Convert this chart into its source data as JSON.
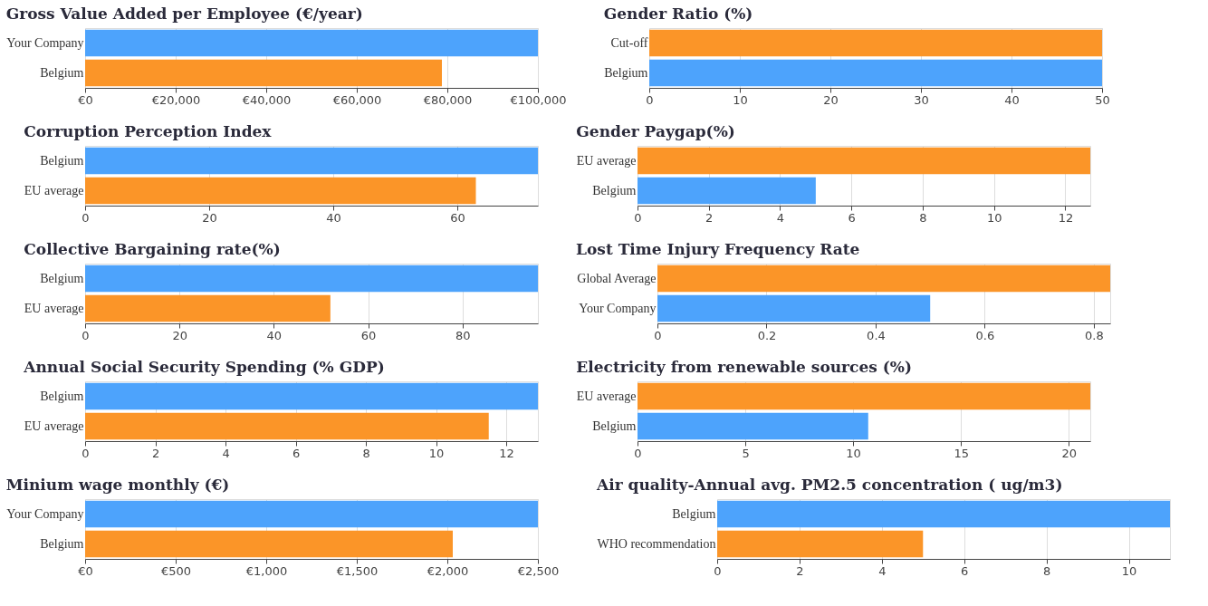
{
  "chart_data": [
    {
      "type": "bar",
      "orientation": "horizontal",
      "title": "Gross Value Added per Employee (€/year)",
      "categories": [
        "Your Company",
        "Belgium"
      ],
      "values": [
        100000,
        78800
      ],
      "colors": [
        "#4da3fc",
        "#fb9528"
      ],
      "xlim": [
        0,
        100000
      ],
      "xticks": [
        {
          "value": 0,
          "label": "€0"
        },
        {
          "value": 20000,
          "label": "€20,000"
        },
        {
          "value": 40000,
          "label": "€40,000"
        },
        {
          "value": 60000,
          "label": "€60,000"
        },
        {
          "value": 80000,
          "label": "€80,000"
        },
        {
          "value": 100000,
          "label": "€100,000"
        }
      ],
      "grid": "x"
    },
    {
      "type": "bar",
      "orientation": "horizontal",
      "title": "Gender Ratio (%)",
      "categories": [
        "Cut-off",
        "Belgium"
      ],
      "values": [
        50,
        50
      ],
      "colors": [
        "#fb9528",
        "#4da3fc"
      ],
      "xlim": [
        0,
        50
      ],
      "xticks": [
        0,
        10,
        20,
        30,
        40,
        50
      ],
      "grid": "x"
    },
    {
      "type": "bar",
      "orientation": "horizontal",
      "title": "Corruption Perception Index",
      "categories": [
        "Belgium",
        "EU average"
      ],
      "values": [
        73,
        63
      ],
      "colors": [
        "#4da3fc",
        "#fb9528"
      ],
      "xlim": [
        0,
        73
      ],
      "xticks": [
        0,
        20,
        40,
        60
      ],
      "grid": "x"
    },
    {
      "type": "bar",
      "orientation": "horizontal",
      "title": "Gender Paygap(%)",
      "categories": [
        "EU average",
        "Belgium"
      ],
      "values": [
        12.7,
        5.0
      ],
      "colors": [
        "#fb9528",
        "#4da3fc"
      ],
      "xlim": [
        0,
        12.7
      ],
      "xticks": [
        0,
        2,
        4,
        6,
        8,
        10,
        12
      ],
      "grid": "x"
    },
    {
      "type": "bar",
      "orientation": "horizontal",
      "title": "Collective Bargaining rate(%)",
      "categories": [
        "Belgium",
        "EU average"
      ],
      "values": [
        96,
        52
      ],
      "colors": [
        "#4da3fc",
        "#fb9528"
      ],
      "xlim": [
        0,
        96
      ],
      "xticks": [
        0,
        20,
        40,
        60,
        80
      ],
      "grid": "x"
    },
    {
      "type": "bar",
      "orientation": "horizontal",
      "title": "Lost Time Injury Frequency Rate",
      "categories": [
        "Global Average",
        "Your Company"
      ],
      "values": [
        0.83,
        0.5
      ],
      "colors": [
        "#fb9528",
        "#4da3fc"
      ],
      "xlim": [
        0,
        0.83
      ],
      "xticks": [
        0,
        0.2,
        0.4,
        0.6,
        0.8
      ],
      "grid": "x"
    },
    {
      "type": "bar",
      "orientation": "horizontal",
      "title": "Annual Social Security Spending (% GDP)",
      "categories": [
        "Belgium",
        "EU average"
      ],
      "values": [
        12.9,
        11.5
      ],
      "colors": [
        "#4da3fc",
        "#fb9528"
      ],
      "xlim": [
        0,
        12.9
      ],
      "xticks": [
        0,
        2,
        4,
        6,
        8,
        10,
        12
      ],
      "grid": "x"
    },
    {
      "type": "bar",
      "orientation": "horizontal",
      "title": "Electricity from renewable sources (%)",
      "categories": [
        "EU average",
        "Belgium"
      ],
      "values": [
        21,
        10.7
      ],
      "colors": [
        "#fb9528",
        "#4da3fc"
      ],
      "xlim": [
        0,
        21
      ],
      "xticks": [
        0,
        5,
        10,
        15,
        20
      ],
      "grid": "x"
    },
    {
      "type": "bar",
      "orientation": "horizontal",
      "title": "Minium wage monthly (€)",
      "categories": [
        "Your Company",
        "Belgium"
      ],
      "values": [
        2500,
        2030
      ],
      "colors": [
        "#4da3fc",
        "#fb9528"
      ],
      "xlim": [
        0,
        2500
      ],
      "xticks": [
        {
          "value": 0,
          "label": "€0"
        },
        {
          "value": 500,
          "label": "€500"
        },
        {
          "value": 1000,
          "label": "€1,000"
        },
        {
          "value": 1500,
          "label": "€1,500"
        },
        {
          "value": 2000,
          "label": "€2,000"
        },
        {
          "value": 2500,
          "label": "€2,500"
        }
      ],
      "grid": "x"
    },
    {
      "type": "bar",
      "orientation": "horizontal",
      "title": "Air quality-Annual avg. PM2.5 concentration ( ug/m3)",
      "categories": [
        "Belgium",
        "WHO recommendation"
      ],
      "values": [
        11,
        5
      ],
      "colors": [
        "#4da3fc",
        "#fb9528"
      ],
      "xlim": [
        0,
        11
      ],
      "xticks": [
        0,
        2,
        4,
        6,
        8,
        10
      ],
      "grid": "x"
    }
  ]
}
